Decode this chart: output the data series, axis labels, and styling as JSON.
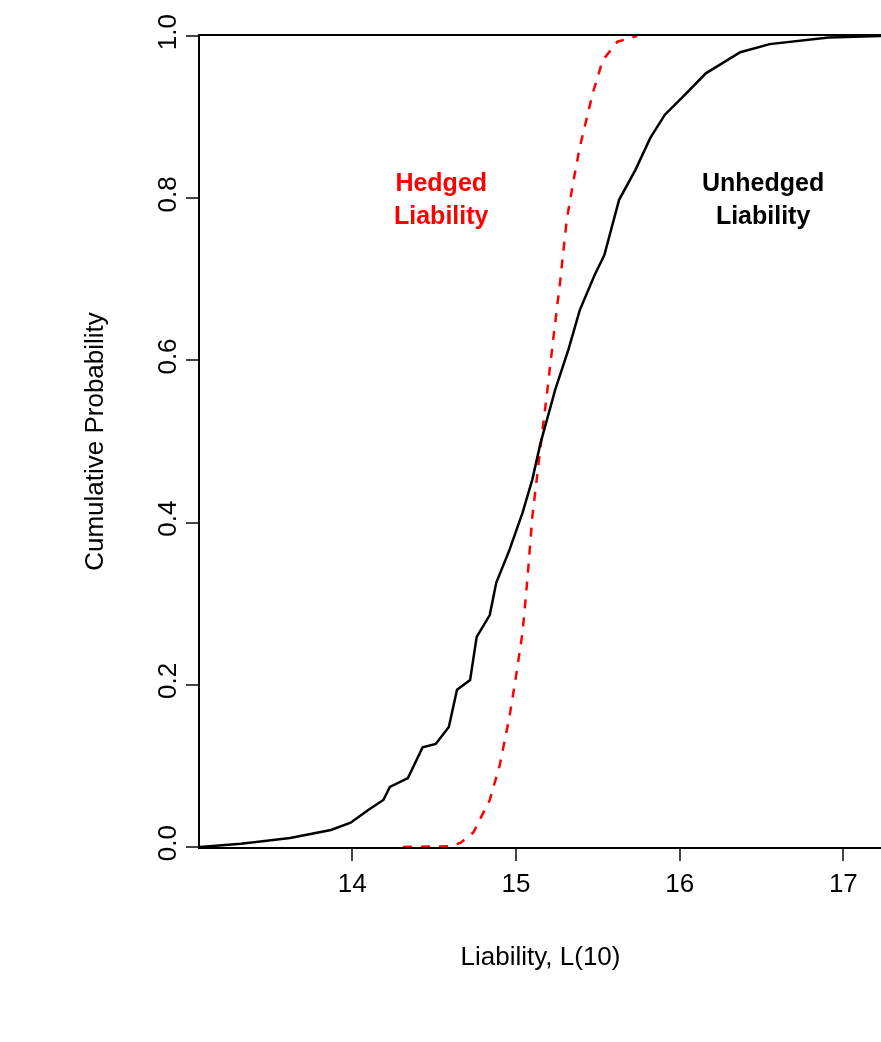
{
  "chart_data": {
    "type": "line",
    "xlabel": "Liability, L(10)",
    "ylabel": "Cumulative Probability",
    "xlim": [
      13.07,
      17.23
    ],
    "xticks": [
      14,
      15,
      16,
      17
    ],
    "ylim": [
      0,
      1
    ],
    "yticks": [
      {
        "value": 0,
        "label": "0.0"
      },
      0.2,
      0.4,
      0.6,
      0.8,
      {
        "value": 1,
        "label": "1.0"
      }
    ],
    "grid": false,
    "legend": false,
    "series": [
      {
        "name": "Hedged Liability",
        "color": "#ff0000",
        "line_style": "dashed",
        "x": [
          14.31,
          14.6,
          14.66,
          14.74,
          14.84,
          14.9,
          14.96,
          15.0,
          15.04,
          15.07,
          15.1,
          15.16,
          15.19,
          15.23,
          15.27,
          15.31,
          15.35,
          15.39,
          15.47,
          15.53,
          15.62,
          15.74
        ],
        "values": [
          0,
          0.001,
          0.005,
          0.018,
          0.058,
          0.1,
          0.16,
          0.21,
          0.264,
          0.33,
          0.407,
          0.51,
          0.56,
          0.63,
          0.697,
          0.773,
          0.82,
          0.863,
          0.93,
          0.97,
          0.993,
          1.0
        ]
      },
      {
        "name": "Unhedged Liability",
        "color": "#000000",
        "line_style": "solid",
        "x": [
          13.07,
          13.32,
          13.62,
          13.87,
          13.99,
          14.1,
          14.19,
          14.23,
          14.34,
          14.43,
          14.51,
          14.59,
          14.64,
          14.72,
          14.76,
          14.84,
          14.88,
          14.96,
          15.04,
          15.1,
          15.15,
          15.24,
          15.32,
          15.39,
          15.48,
          15.54,
          15.63,
          15.73,
          15.82,
          15.91,
          16.03,
          16.16,
          16.37,
          16.55,
          16.91,
          17.23
        ],
        "values": [
          0,
          0.004,
          0.011,
          0.021,
          0.03,
          0.046,
          0.058,
          0.074,
          0.085,
          0.123,
          0.127,
          0.148,
          0.194,
          0.206,
          0.259,
          0.286,
          0.326,
          0.366,
          0.412,
          0.453,
          0.498,
          0.564,
          0.613,
          0.662,
          0.705,
          0.73,
          0.798,
          0.835,
          0.874,
          0.903,
          0.927,
          0.954,
          0.98,
          0.99,
          0.998,
          1.0
        ]
      }
    ]
  }
}
